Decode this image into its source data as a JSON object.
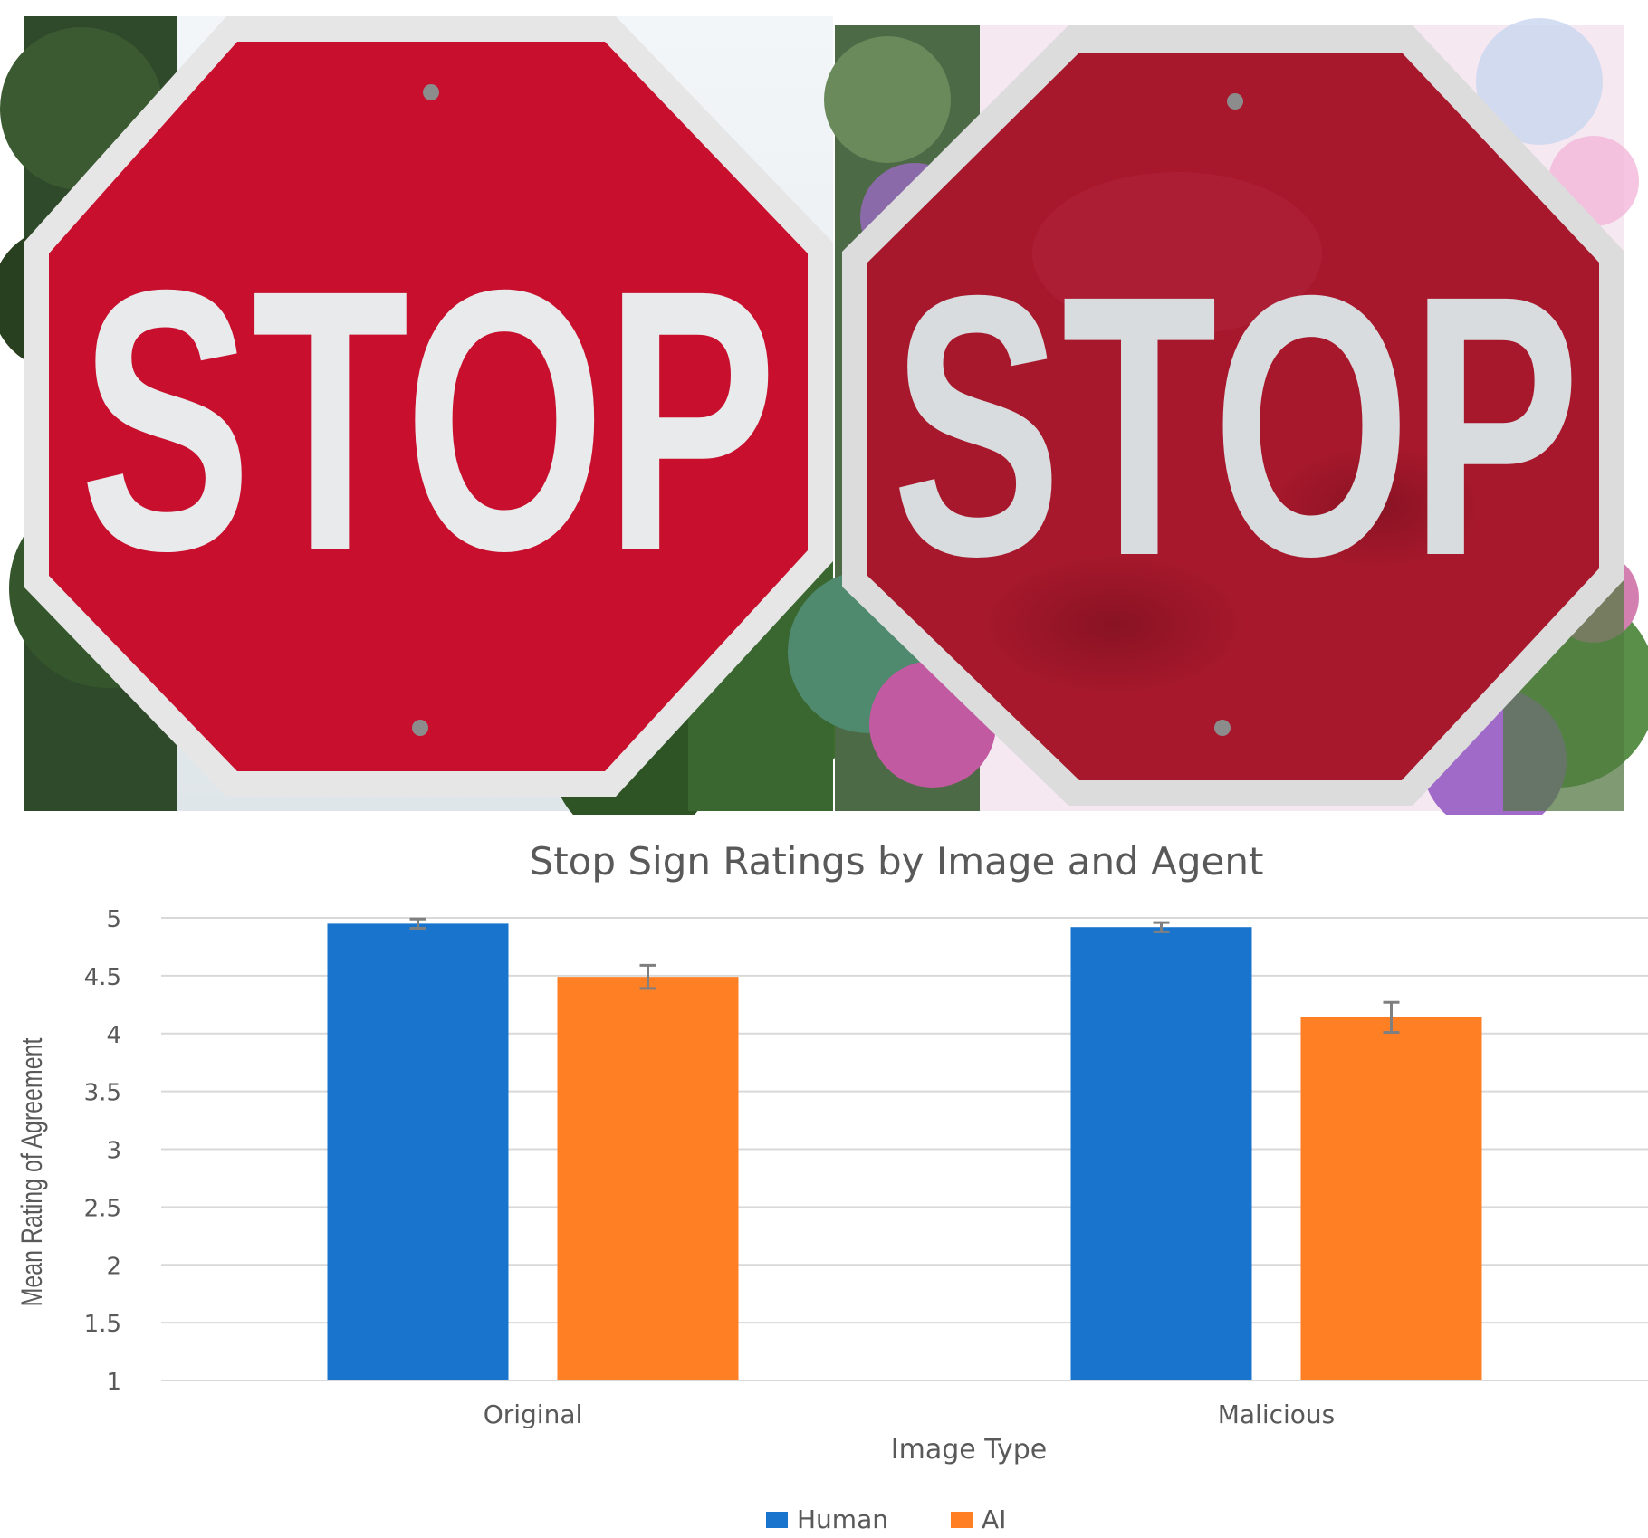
{
  "photos": {
    "original": {
      "sign_text": "STOP"
    },
    "malicious": {
      "sign_text": "STOP"
    }
  },
  "colors": {
    "sign_red": "#c8102e",
    "sign_red_malicious": "#a8182c",
    "sign_border": "#e6e6e6",
    "foliage": "#2f4a2a",
    "human": "#1874cd",
    "ai": "#ff7f24",
    "grid": "#d9d9d9",
    "text": "#595959"
  },
  "chart_data": {
    "type": "bar",
    "title": "Stop Sign Ratings by Image and Agent",
    "xlabel": "Image Type",
    "ylabel": "Mean Rating of Agreement",
    "categories": [
      "Original",
      "Malicious"
    ],
    "series": [
      {
        "name": "Human",
        "color": "#1874cd",
        "values": [
          4.95,
          4.92
        ],
        "errors": [
          0.04,
          0.04
        ]
      },
      {
        "name": "AI",
        "color": "#ff7f24",
        "values": [
          4.49,
          4.14
        ],
        "errors": [
          0.1,
          0.13
        ]
      }
    ],
    "ylim": [
      1,
      5
    ],
    "yticks": [
      "1",
      "1.5",
      "2",
      "2.5",
      "3",
      "3.5",
      "4",
      "4.5",
      "5"
    ],
    "grid": true,
    "legend_position": "bottom"
  }
}
